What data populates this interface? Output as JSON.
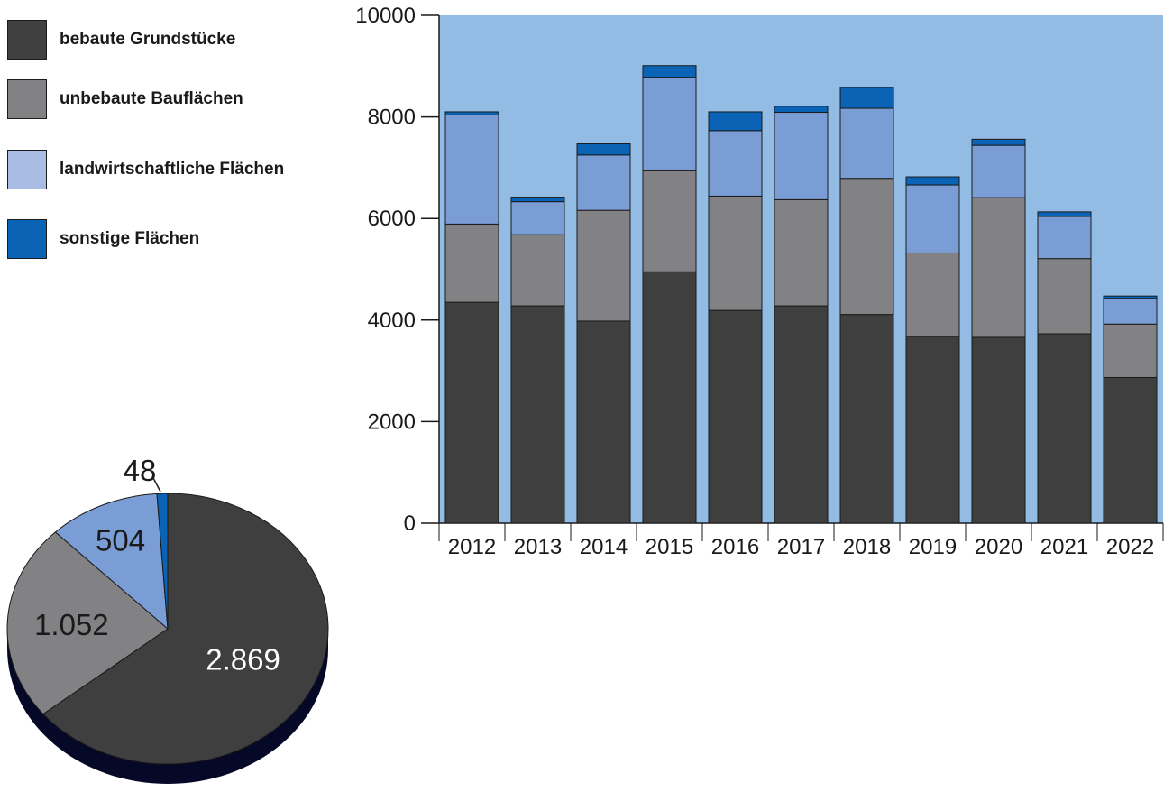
{
  "legend": [
    {
      "label": "bebaute Grundstücke",
      "color": "#3f3f3f"
    },
    {
      "label": "unbebaute Bauflächen",
      "color": "#828285"
    },
    {
      "label": "landwirtschaftliche Flächen",
      "color": "#a9bde4"
    },
    {
      "label": "sonstige Flächen",
      "color": "#0a63b5"
    }
  ],
  "chart_data": [
    {
      "type": "bar",
      "stacked": true,
      "categories": [
        "2012",
        "2013",
        "2014",
        "2015",
        "2016",
        "2017",
        "2018",
        "2019",
        "2020",
        "2021",
        "2022"
      ],
      "series": [
        {
          "name": "bebaute Grundstücke",
          "color": "#3f3f3f",
          "values": [
            4350,
            4280,
            3980,
            4950,
            4190,
            4280,
            4110,
            3680,
            3660,
            3730,
            2869
          ]
        },
        {
          "name": "unbebaute Bauflächen",
          "color": "#828285",
          "values": [
            1540,
            1400,
            2180,
            1990,
            2250,
            2090,
            2680,
            1640,
            2750,
            1480,
            1052
          ]
        },
        {
          "name": "landwirtschaftliche Flächen",
          "color": "#7b9dd6",
          "values": [
            2150,
            650,
            1090,
            1840,
            1290,
            1720,
            1380,
            1340,
            1030,
            830,
            504
          ]
        },
        {
          "name": "sonstige Flächen",
          "color": "#0a63b5",
          "values": [
            60,
            90,
            220,
            230,
            370,
            120,
            410,
            160,
            120,
            90,
            48
          ]
        }
      ],
      "yticks": [
        "0",
        "2000",
        "4000",
        "6000",
        "8000",
        "10000"
      ],
      "ylim": [
        0,
        10000
      ],
      "background": "#93bce4",
      "grid": false
    },
    {
      "type": "pie",
      "labels": [
        "bebaute Grundstücke",
        "unbebaute Bauflächen",
        "landwirtschaftliche Flächen",
        "sonstige Flächen"
      ],
      "values": [
        2869,
        1052,
        504,
        48
      ],
      "value_labels": [
        "2.869",
        "1.052",
        "504",
        "48"
      ],
      "colors": [
        "#3f3f3f",
        "#828285",
        "#7b9dd6",
        "#0a63b5"
      ],
      "shadow_color": "#060828",
      "label_colors": [
        "#ffffff",
        "#1a1a1a",
        "#1a1a1a",
        "#1a1a1a"
      ]
    }
  ]
}
